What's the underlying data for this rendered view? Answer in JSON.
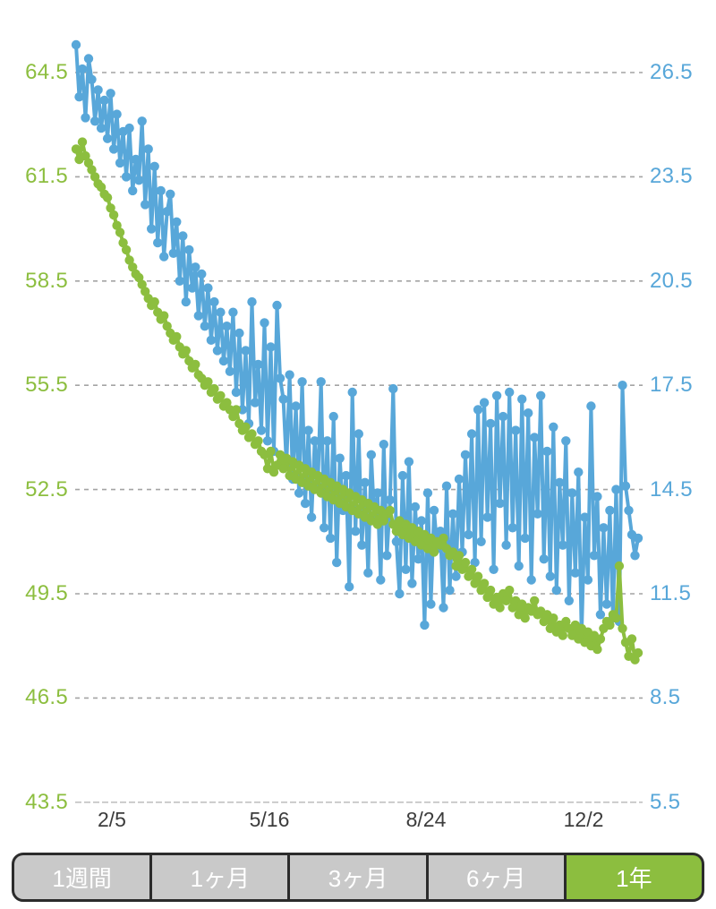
{
  "chart_data": {
    "type": "line",
    "title": "",
    "description": "One-year dual-axis daily line chart with round point markers: green series on left axis, blue series on right axis",
    "x_axis": {
      "domain_days": [
        0,
        358
      ],
      "ticks": [
        {
          "label": "2/5",
          "day": 23
        },
        {
          "label": "5/16",
          "day": 123
        },
        {
          "label": "8/24",
          "day": 223
        },
        {
          "label": "12/2",
          "day": 323
        }
      ]
    },
    "left_axis": {
      "color": "#8CBE3F",
      "range": [
        43.5,
        64.5
      ],
      "ticks": [
        "64.5",
        "61.5",
        "58.5",
        "55.5",
        "52.5",
        "49.5",
        "46.5",
        "43.5"
      ],
      "tick_values": [
        64.5,
        61.5,
        58.5,
        55.5,
        52.5,
        49.5,
        46.5,
        43.5
      ]
    },
    "right_axis": {
      "color": "#58A7D9",
      "range": [
        5.5,
        26.5
      ],
      "ticks": [
        "26.5",
        "23.5",
        "20.5",
        "17.5",
        "14.5",
        "11.5",
        "8.5",
        "5.5"
      ],
      "tick_values": [
        26.5,
        23.5,
        20.5,
        17.5,
        14.5,
        11.5,
        8.5,
        5.5
      ]
    },
    "grid": {
      "show": true,
      "style": "dashed",
      "color": "#A4A4A4",
      "bottom_line_color": "#C2C2C2"
    },
    "legend": "none",
    "series": [
      {
        "name": "blue-right-axis-series",
        "axis": "right",
        "color": "#58A7D9",
        "start_day": 0,
        "day_step": 2,
        "values": [
          27.3,
          25.8,
          26.6,
          25.2,
          26.9,
          26.3,
          25.1,
          26.0,
          24.9,
          25.7,
          24.6,
          25.9,
          24.3,
          25.3,
          23.9,
          24.8,
          23.5,
          24.9,
          23.1,
          24.0,
          23.4,
          25.1,
          22.7,
          24.3,
          22.0,
          23.8,
          21.6,
          23.1,
          21.2,
          22.5,
          23.0,
          21.3,
          22.2,
          20.5,
          21.8,
          19.9,
          21.4,
          20.3,
          20.9,
          19.5,
          20.7,
          19.2,
          20.3,
          18.8,
          19.9,
          18.5,
          19.6,
          18.2,
          19.2,
          17.9,
          19.6,
          17.3,
          19.0,
          16.8,
          18.5,
          16.4,
          19.9,
          17.0,
          18.1,
          16.2,
          19.3,
          15.9,
          18.6,
          15.6,
          19.8,
          17.7,
          17.1,
          15.2,
          17.8,
          14.8,
          16.9,
          14.4,
          17.6,
          14.1,
          16.2,
          13.7,
          15.9,
          14.6,
          17.6,
          13.4,
          15.9,
          13.1,
          16.6,
          12.4,
          15.4,
          13.9,
          14.9,
          11.7,
          17.3,
          13.3,
          16.1,
          12.9,
          14.7,
          12.1,
          15.5,
          13.6,
          14.4,
          11.9,
          15.8,
          12.6,
          14.2,
          17.4,
          13.0,
          11.5,
          14.9,
          12.2,
          15.3,
          11.8,
          14.0,
          12.5,
          13.6,
          10.6,
          14.4,
          11.2,
          13.9,
          12.8,
          13.3,
          11.1,
          14.6,
          11.6,
          13.8,
          12.0,
          14.8,
          12.7,
          15.5,
          13.2,
          16.1,
          12.4,
          16.8,
          13.0,
          17.0,
          13.7,
          16.4,
          12.2,
          17.2,
          14.1,
          16.6,
          12.9,
          17.3,
          13.4,
          16.2,
          12.3,
          17.1,
          13.1,
          16.7,
          11.9,
          16.0,
          13.8,
          17.2,
          12.5,
          15.6,
          12.0,
          16.3,
          11.6,
          14.7,
          12.9,
          15.9,
          11.3,
          14.4,
          12.1,
          15.0,
          10.3,
          13.7,
          11.9,
          16.9,
          12.6,
          14.3,
          10.9,
          13.4,
          11.2,
          13.9,
          10.8,
          14.5,
          10.7,
          17.5,
          14.6,
          13.9,
          13.2,
          12.6,
          13.1
        ]
      },
      {
        "name": "green-left-axis-series",
        "axis": "left",
        "color": "#8CBE3F",
        "start_day": 0,
        "day_step": 2,
        "values": [
          62.3,
          62.0,
          62.5,
          62.1,
          61.9,
          61.7,
          61.5,
          61.3,
          61.2,
          61.0,
          60.9,
          60.6,
          60.4,
          60.1,
          59.9,
          59.6,
          59.4,
          59.1,
          58.9,
          58.7,
          58.6,
          58.4,
          58.2,
          58.0,
          57.8,
          57.9,
          57.6,
          57.4,
          57.5,
          57.2,
          57.0,
          56.8,
          56.9,
          56.6,
          56.4,
          56.5,
          56.2,
          56.0,
          56.1,
          55.8,
          55.7,
          55.5,
          55.6,
          55.3,
          55.4,
          55.1,
          55.2,
          54.9,
          55.0,
          54.8,
          54.6,
          54.8,
          54.4,
          54.2,
          54.3,
          54.0,
          54.1,
          53.8,
          53.9,
          53.6,
          53.5,
          53.1,
          53.6,
          53.0,
          53.2,
          53.5,
          53.1,
          53.4,
          52.9,
          53.3,
          52.8,
          53.2,
          52.7,
          53.1,
          52.6,
          53.0,
          52.5,
          52.9,
          52.4,
          52.8,
          52.3,
          52.7,
          52.2,
          52.6,
          52.1,
          52.5,
          52.0,
          52.4,
          51.9,
          52.3,
          51.8,
          52.2,
          51.7,
          52.1,
          51.6,
          52.0,
          51.5,
          51.9,
          51.6,
          51.8,
          51.9,
          51.5,
          51.3,
          51.6,
          51.2,
          51.5,
          51.1,
          51.4,
          51.0,
          51.3,
          50.9,
          51.2,
          50.8,
          51.1,
          50.7,
          51.0,
          50.9,
          51.1,
          50.8,
          50.6,
          50.7,
          50.3,
          50.6,
          50.2,
          50.4,
          50.0,
          50.2,
          49.8,
          50.0,
          49.6,
          49.8,
          49.4,
          49.6,
          49.2,
          49.4,
          49.1,
          49.5,
          49.3,
          49.6,
          49.1,
          49.3,
          48.9,
          49.2,
          48.8,
          49.1,
          49.0,
          49.3,
          48.9,
          49.0,
          48.7,
          48.9,
          48.5,
          48.8,
          48.4,
          48.6,
          48.3,
          48.7,
          48.5,
          48.3,
          48.6,
          48.2,
          48.5,
          48.1,
          48.4,
          48.0,
          48.3,
          47.9,
          48.2,
          48.5,
          48.7,
          48.6,
          48.9,
          48.8,
          50.3,
          48.5,
          48.1,
          47.7,
          48.2,
          47.6,
          47.8
        ]
      }
    ]
  },
  "range_selector": {
    "selected_index": 4,
    "colors": {
      "selected_bg": "#8CBE3F",
      "unselected_bg": "#C9C9C9",
      "border": "#2B2B2B",
      "text": "#FFFFFF"
    },
    "buttons": [
      {
        "label": "1週間"
      },
      {
        "label": "1ヶ月"
      },
      {
        "label": "3ヶ月"
      },
      {
        "label": "6ヶ月"
      },
      {
        "label": "1年"
      }
    ]
  }
}
